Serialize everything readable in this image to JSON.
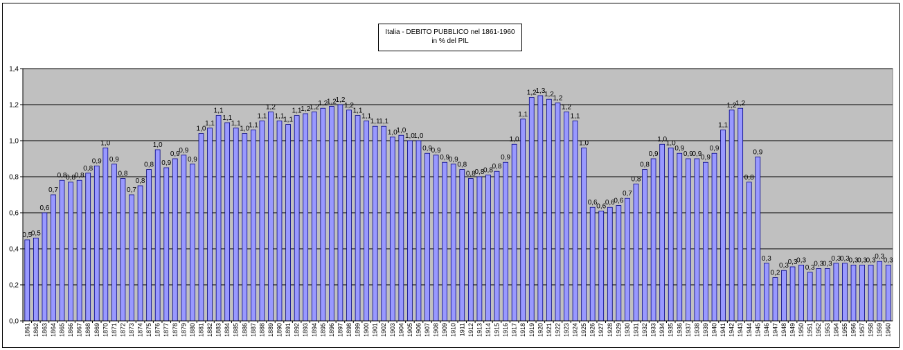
{
  "chart_data": {
    "type": "bar",
    "title": "Italia - DEBITO PUBBLICO nel 1861-1960",
    "subtitle": "in % del PIL",
    "xlabel": "",
    "ylabel": "",
    "ylim": [
      0,
      1.4
    ],
    "yticks": [
      "0,0",
      "0,2",
      "0,4",
      "0,6",
      "0,8",
      "1,0",
      "1,2",
      "1,4"
    ],
    "grid": true,
    "legend": "none",
    "colors": {
      "bar": "#9999ff",
      "bar_edge": "#000080",
      "plot_bg": "#c0c0c0",
      "grid": "#000000"
    },
    "categories": [
      "1861",
      "1862",
      "1863",
      "1864",
      "1865",
      "1866",
      "1867",
      "1868",
      "1869",
      "1870",
      "1871",
      "1872",
      "1873",
      "1874",
      "1875",
      "1876",
      "1877",
      "1878",
      "1879",
      "1880",
      "1881",
      "1882",
      "1883",
      "1884",
      "1885",
      "1886",
      "1887",
      "1888",
      "1889",
      "1890",
      "1891",
      "1892",
      "1893",
      "1894",
      "1895",
      "1896",
      "1897",
      "1898",
      "1899",
      "1900",
      "1901",
      "1902",
      "1903",
      "1904",
      "1905",
      "1906",
      "1907",
      "1908",
      "1909",
      "1910",
      "1911",
      "1912",
      "1913",
      "1914",
      "1915",
      "1916",
      "1917",
      "1918",
      "1919",
      "1920",
      "1921",
      "1922",
      "1923",
      "1924",
      "1925",
      "1926",
      "1927",
      "1928",
      "1929",
      "1930",
      "1931",
      "1932",
      "1933",
      "1934",
      "1935",
      "1936",
      "1937",
      "1938",
      "1939",
      "1940",
      "1941",
      "1942",
      "1943",
      "1944",
      "1945",
      "1946",
      "1947",
      "1948",
      "1949",
      "1950",
      "1951",
      "1952",
      "1953",
      "1954",
      "1955",
      "1956",
      "1957",
      "1958",
      "1959",
      "1960"
    ],
    "values": [
      0.45,
      0.46,
      0.6,
      0.7,
      0.78,
      0.77,
      0.78,
      0.82,
      0.86,
      0.96,
      0.87,
      0.79,
      0.7,
      0.75,
      0.84,
      0.95,
      0.85,
      0.9,
      0.92,
      0.87,
      1.04,
      1.07,
      1.14,
      1.1,
      1.07,
      1.04,
      1.06,
      1.11,
      1.16,
      1.11,
      1.09,
      1.14,
      1.15,
      1.16,
      1.18,
      1.19,
      1.2,
      1.17,
      1.14,
      1.11,
      1.08,
      1.08,
      1.02,
      1.03,
      1.0,
      1.0,
      0.93,
      0.92,
      0.88,
      0.87,
      0.84,
      0.79,
      0.8,
      0.81,
      0.83,
      0.88,
      0.98,
      1.12,
      1.24,
      1.25,
      1.23,
      1.21,
      1.16,
      1.11,
      0.96,
      0.63,
      0.61,
      0.63,
      0.64,
      0.68,
      0.76,
      0.84,
      0.9,
      0.98,
      0.96,
      0.93,
      0.9,
      0.9,
      0.88,
      0.93,
      1.06,
      1.17,
      1.18,
      0.77,
      0.91,
      0.32,
      0.24,
      0.28,
      0.3,
      0.31,
      0.27,
      0.29,
      0.29,
      0.32,
      0.32,
      0.31,
      0.31,
      0.31,
      0.33,
      0.31
    ],
    "data_labels": [
      "0,5",
      "0,5",
      "0,6",
      "0,7",
      "0,8",
      "0,8",
      "0,8",
      "0,8",
      "0,9",
      "1,0",
      "0,9",
      "0,8",
      "0,7",
      "0,8",
      "0,8",
      "1,0",
      "0,9",
      "0,9",
      "0,9",
      "0,9",
      "1,0",
      "1,1",
      "1,1",
      "1,1",
      "1,1",
      "1,0",
      "1,1",
      "1,1",
      "1,2",
      "1,1",
      "1,1",
      "1,1",
      "1,2",
      "1,2",
      "1,2",
      "1,2",
      "1,2",
      "1,2",
      "1,1",
      "1,1",
      "1,1",
      "1,1",
      "1,0",
      "1,0",
      "1,0",
      "1,0",
      "0,9",
      "0,9",
      "0,9",
      "0,9",
      "0,8",
      "0,8",
      "0,8",
      "0,8",
      "0,8",
      "0,9",
      "1,0",
      "1,1",
      "1,2",
      "1,3",
      "1,2",
      "1,2",
      "1,2",
      "1,1",
      "1,0",
      "0,6",
      "0,6",
      "0,6",
      "0,6",
      "0,7",
      "0,8",
      "0,8",
      "0,9",
      "1,0",
      "1,0",
      "0,9",
      "0,9",
      "0,9",
      "0,9",
      "0,9",
      "1,1",
      "1,2",
      "1,2",
      "0,8",
      "0,9",
      "0,3",
      "0,2",
      "0,3",
      "0,3",
      "0,3",
      "0,3",
      "0,3",
      "0,3",
      "0,3",
      "0,3",
      "0,3",
      "0,3",
      "0,3",
      "0,3",
      "0,3"
    ]
  }
}
